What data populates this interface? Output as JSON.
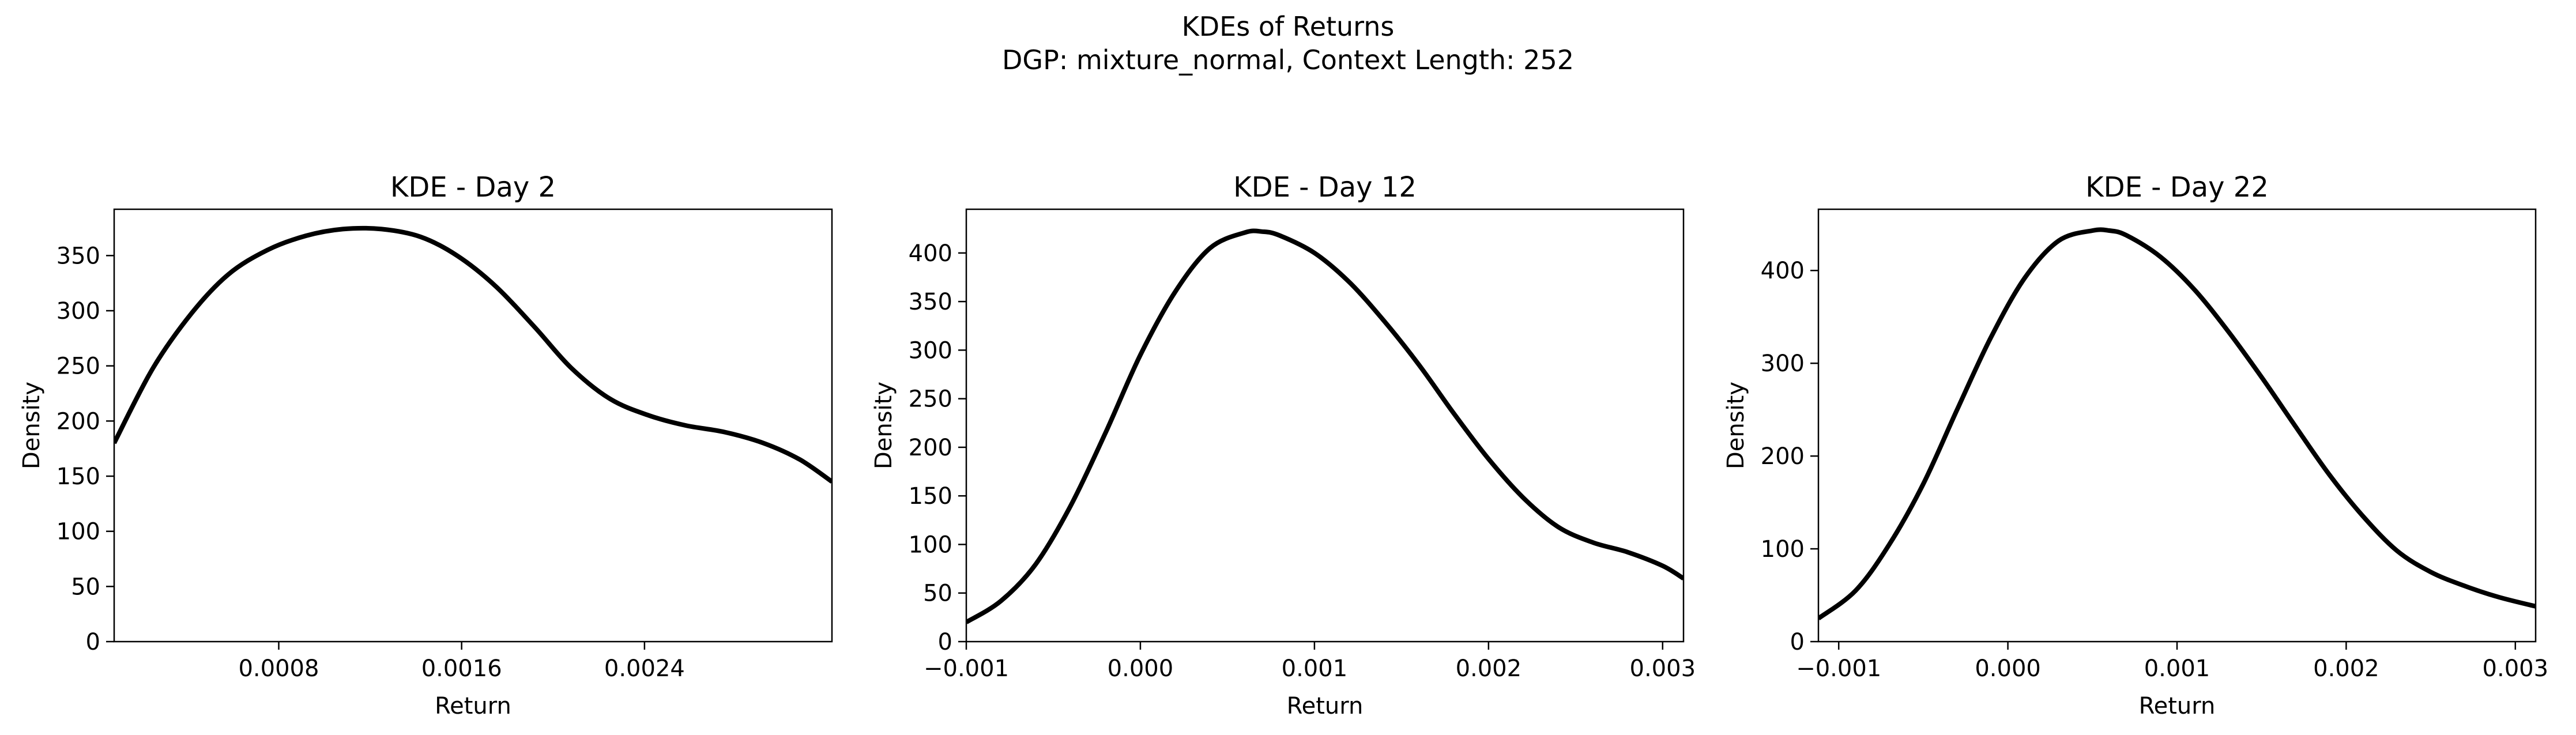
{
  "suptitle": {
    "line1": "KDEs of Returns",
    "line2": "DGP: mixture_normal, Context Length: 252"
  },
  "colors": {
    "line": "#000000",
    "axes": "#000000",
    "background": "#ffffff"
  },
  "chart_data": [
    {
      "type": "line",
      "title": "KDE - Day 2",
      "xlabel": "Return",
      "ylabel": "Density",
      "xlim": [
        8e-05,
        0.00322
      ],
      "ylim": [
        0,
        392
      ],
      "xticks": [
        {
          "value": 0.0008,
          "label": "0.0008"
        },
        {
          "value": 0.0016,
          "label": "0.0016"
        },
        {
          "value": 0.0024,
          "label": "0.0024"
        }
      ],
      "yticks": [
        {
          "value": 0,
          "label": "0"
        },
        {
          "value": 50,
          "label": "50"
        },
        {
          "value": 100,
          "label": "100"
        },
        {
          "value": 150,
          "label": "150"
        },
        {
          "value": 200,
          "label": "200"
        },
        {
          "value": 250,
          "label": "250"
        },
        {
          "value": 300,
          "label": "300"
        },
        {
          "value": 350,
          "label": "350"
        }
      ],
      "series": [
        {
          "x": [
            8e-05,
            0.00025,
            0.00042,
            0.00058,
            0.00075,
            0.00092,
            0.00108,
            0.00125,
            0.00142,
            0.00158,
            0.00175,
            0.00192,
            0.00208,
            0.00225,
            0.00242,
            0.00258,
            0.00275,
            0.00292,
            0.00308,
            0.00322
          ],
          "y": [
            180,
            248,
            298,
            333,
            355,
            368,
            374,
            374,
            367,
            350,
            322,
            285,
            248,
            220,
            205,
            196,
            190,
            180,
            165,
            145
          ]
        }
      ]
    },
    {
      "type": "line",
      "title": "KDE - Day 12",
      "xlabel": "Return",
      "ylabel": "Density",
      "xlim": [
        -0.001,
        0.00312
      ],
      "ylim": [
        0,
        445
      ],
      "xticks": [
        {
          "value": -0.001,
          "label": "−0.001"
        },
        {
          "value": 0.0,
          "label": "0.000"
        },
        {
          "value": 0.001,
          "label": "0.001"
        },
        {
          "value": 0.002,
          "label": "0.002"
        },
        {
          "value": 0.003,
          "label": "0.003"
        }
      ],
      "yticks": [
        {
          "value": 0,
          "label": "0"
        },
        {
          "value": 50,
          "label": "50"
        },
        {
          "value": 100,
          "label": "100"
        },
        {
          "value": 150,
          "label": "150"
        },
        {
          "value": 200,
          "label": "200"
        },
        {
          "value": 250,
          "label": "250"
        },
        {
          "value": 300,
          "label": "300"
        },
        {
          "value": 350,
          "label": "350"
        },
        {
          "value": 400,
          "label": "400"
        }
      ],
      "series": [
        {
          "x": [
            -0.001,
            -0.0008,
            -0.0006,
            -0.0004,
            -0.0002,
            0.0,
            0.0002,
            0.0004,
            0.0006,
            0.0007,
            0.0008,
            0.001,
            0.0012,
            0.0014,
            0.0016,
            0.0018,
            0.002,
            0.0022,
            0.0024,
            0.0026,
            0.0028,
            0.003,
            0.00312
          ],
          "y": [
            20,
            42,
            80,
            140,
            215,
            295,
            360,
            405,
            421,
            422,
            418,
            400,
            370,
            330,
            285,
            235,
            188,
            148,
            118,
            102,
            92,
            78,
            65
          ]
        }
      ]
    },
    {
      "type": "line",
      "title": "KDE - Day 22",
      "xlabel": "Return",
      "ylabel": "Density",
      "xlim": [
        -0.00112,
        0.00312
      ],
      "ylim": [
        0,
        466
      ],
      "xticks": [
        {
          "value": -0.001,
          "label": "−0.001"
        },
        {
          "value": 0.0,
          "label": "0.000"
        },
        {
          "value": 0.001,
          "label": "0.001"
        },
        {
          "value": 0.002,
          "label": "0.002"
        },
        {
          "value": 0.003,
          "label": "0.003"
        }
      ],
      "yticks": [
        {
          "value": 0,
          "label": "0"
        },
        {
          "value": 100,
          "label": "100"
        },
        {
          "value": 200,
          "label": "200"
        },
        {
          "value": 300,
          "label": "300"
        },
        {
          "value": 400,
          "label": "400"
        }
      ],
      "series": [
        {
          "x": [
            -0.00112,
            -0.0009,
            -0.0007,
            -0.0005,
            -0.0003,
            -0.0001,
            0.0001,
            0.0003,
            0.0005,
            0.0006,
            0.0007,
            0.0009,
            0.0011,
            0.0013,
            0.0015,
            0.0017,
            0.0019,
            0.0021,
            0.0023,
            0.0025,
            0.0027,
            0.0029,
            0.00312
          ],
          "y": [
            25,
            55,
            105,
            170,
            250,
            328,
            392,
            432,
            443,
            443,
            438,
            415,
            380,
            335,
            285,
            232,
            180,
            135,
            98,
            75,
            60,
            48,
            38
          ]
        }
      ]
    }
  ]
}
